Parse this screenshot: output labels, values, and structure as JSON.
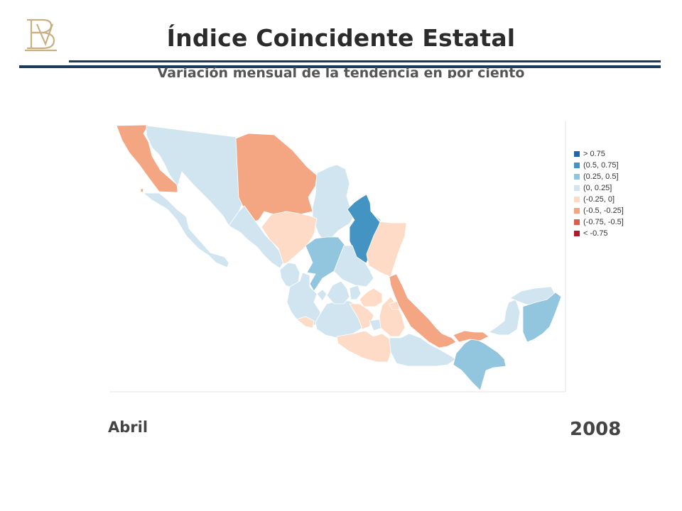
{
  "header": {
    "title": "Índice Coincidente Estatal",
    "subtitle": "Variación mensual de la tendencia en por ciento"
  },
  "footer": {
    "month": "Abril",
    "year": "2008"
  },
  "legend": [
    {
      "label": "> 0.75",
      "color": "#2166ac"
    },
    {
      "label": "(0.5, 0.75]",
      "color": "#4393c3"
    },
    {
      "label": "(0.25, 0.5]",
      "color": "#92c5de"
    },
    {
      "label": "(0, 0.25]",
      "color": "#d1e5f0"
    },
    {
      "label": "(-0.25, 0]",
      "color": "#fddbc7"
    },
    {
      "label": "(-0.5, -0.25]",
      "color": "#f4a582"
    },
    {
      "label": "(-0.75, -0.5]",
      "color": "#d6604d"
    },
    {
      "label": "< -0.75",
      "color": "#b2182b"
    }
  ],
  "colors": {
    "rule": "#1b3a5c",
    "map_border": "#e6e6e6",
    "state_outline": "#ffffff"
  },
  "regions": [
    {
      "name": "Baja California",
      "class": "(-0.5, -0.25]"
    },
    {
      "name": "Baja California Sur",
      "class": "(0, 0.25]"
    },
    {
      "name": "Sonora",
      "class": "(0, 0.25]"
    },
    {
      "name": "Chihuahua",
      "class": "(-0.5, -0.25]"
    },
    {
      "name": "Coahuila",
      "class": "(0, 0.25]"
    },
    {
      "name": "Nuevo León",
      "class": "(0.5, 0.75]"
    },
    {
      "name": "Tamaulipas",
      "class": "(-0.25, 0]"
    },
    {
      "name": "Sinaloa",
      "class": "(0, 0.25]"
    },
    {
      "name": "Durango",
      "class": "(-0.25, 0]"
    },
    {
      "name": "Zacatecas",
      "class": "(0.25, 0.5]"
    },
    {
      "name": "San Luis Potosí",
      "class": "(0, 0.25]"
    },
    {
      "name": "Nayarit",
      "class": "(0, 0.25]"
    },
    {
      "name": "Jalisco",
      "class": "(0, 0.25]"
    },
    {
      "name": "Colima",
      "class": "(-0.25, 0]"
    },
    {
      "name": "Michoacán",
      "class": "(0, 0.25]"
    },
    {
      "name": "Guanajuato",
      "class": "(0, 0.25]"
    },
    {
      "name": "Querétaro",
      "class": "(0, 0.25]"
    },
    {
      "name": "Hidalgo",
      "class": "(-0.25, 0]"
    },
    {
      "name": "México",
      "class": "(-0.25, 0]"
    },
    {
      "name": "Morelos",
      "class": "(0, 0.25]"
    },
    {
      "name": "Guerrero",
      "class": "(-0.25, 0]"
    },
    {
      "name": "Puebla",
      "class": "(-0.25, 0]"
    },
    {
      "name": "Tlaxcala",
      "class": "(-0.25, 0]"
    },
    {
      "name": "Veracruz",
      "class": "(-0.5, -0.25]"
    },
    {
      "name": "Oaxaca",
      "class": "(0, 0.25]"
    },
    {
      "name": "Chiapas",
      "class": "(0.25, 0.5]"
    },
    {
      "name": "Tabasco",
      "class": "(-0.5, -0.25]"
    },
    {
      "name": "Campeche",
      "class": "(0, 0.25]"
    },
    {
      "name": "Yucatán",
      "class": "(0, 0.25]"
    },
    {
      "name": "Quintana Roo",
      "class": "(0.25, 0.5]"
    },
    {
      "name": "Aguascalientes",
      "class": "(0, 0.25]"
    }
  ]
}
